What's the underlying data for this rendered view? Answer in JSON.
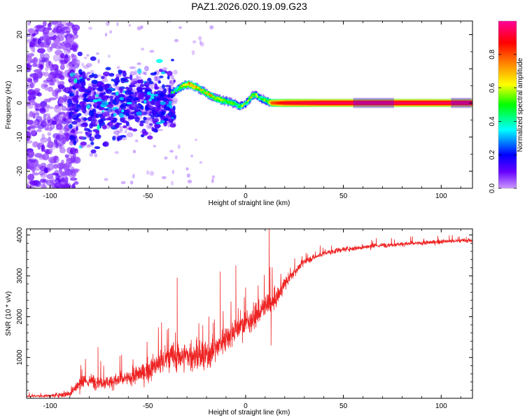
{
  "title": "PAZ1.2026.020.19.09.G23",
  "chart_data": [
    {
      "type": "heatmap",
      "name": "spectrogram",
      "xlabel": "Height of straight line (km)",
      "ylabel": "Frequency (Hz)",
      "xlim": [
        -112,
        116
      ],
      "ylim": [
        -25,
        24
      ],
      "x_ticks": [
        -100,
        -50,
        0,
        50,
        100
      ],
      "y_ticks": [
        -20,
        -10,
        0,
        10,
        20
      ],
      "colorbar": {
        "label": "Normalized spectral amplitude",
        "range": [
          0,
          1
        ],
        "ticks": [
          "0.0",
          "0.2",
          "0.4",
          "0.6",
          "0.8"
        ],
        "tick_values": [
          0,
          0.2,
          0.4,
          0.6,
          0.8
        ],
        "colormap": [
          "#cc99ff",
          "#6600ff",
          "#0000ff",
          "#00ffff",
          "#00ff00",
          "#ffff00",
          "#ff8000",
          "#ff0000",
          "#ff0099"
        ]
      },
      "ridge": {
        "x": [
          -38,
          -35,
          -32,
          -29,
          -27,
          -25,
          -22,
          -19,
          -16,
          -13,
          -10,
          -7,
          -5,
          -3,
          -1,
          1,
          3,
          5,
          7,
          9,
          11,
          13,
          20,
          40,
          60,
          80,
          100,
          116
        ],
        "y": [
          3,
          4,
          5,
          5.5,
          5,
          4.5,
          3.5,
          2.5,
          1.5,
          1,
          0.5,
          0,
          -0.5,
          -1,
          -0.5,
          0.5,
          2,
          2.5,
          1.5,
          1,
          0.5,
          0,
          0,
          0,
          0,
          0,
          0,
          0
        ],
        "amplitude": [
          0.35,
          0.45,
          0.6,
          0.65,
          0.7,
          0.6,
          0.55,
          0.6,
          0.55,
          0.6,
          0.5,
          0.55,
          0.45,
          0.5,
          0.4,
          0.5,
          0.55,
          0.5,
          0.45,
          0.5,
          0.5,
          0.8,
          0.9,
          0.95,
          0.95,
          0.95,
          0.95,
          0.95
        ]
      }
    },
    {
      "type": "line",
      "name": "snr",
      "xlabel": "Height of straight line (km)",
      "ylabel": "SNR (10 * v/v)",
      "xlim": [
        -112,
        116
      ],
      "ylim": [
        0,
        4150
      ],
      "x_ticks": [
        -100,
        -50,
        0,
        50,
        100
      ],
      "y_ticks": [
        1000,
        2000,
        3000,
        4000
      ],
      "series": [
        {
          "name": "SNR",
          "color": "#ee2222",
          "x": [
            -112,
            -100,
            -90,
            -85,
            -80,
            -70,
            -60,
            -50,
            -40,
            -30,
            -20,
            -15,
            -10,
            -5,
            0,
            5,
            10,
            15,
            20,
            25,
            30,
            40,
            50,
            60,
            70,
            80,
            90,
            100,
            116
          ],
          "mean": [
            50,
            60,
            120,
            350,
            420,
            400,
            480,
            680,
            980,
            1050,
            1000,
            1250,
            1500,
            1700,
            1850,
            2000,
            2250,
            2400,
            2800,
            3100,
            3350,
            3550,
            3650,
            3700,
            3750,
            3780,
            3800,
            3840,
            3870
          ],
          "noise": [
            40,
            50,
            150,
            250,
            260,
            250,
            300,
            400,
            600,
            550,
            600,
            450,
            500,
            500,
            450,
            450,
            450,
            350,
            250,
            160,
            120,
            100,
            90,
            90,
            80,
            80,
            80,
            80,
            80
          ]
        }
      ],
      "spikes": [
        {
          "x": -75.5,
          "y": 1250
        },
        {
          "x": -35,
          "y": 2950
        },
        {
          "x": -13,
          "y": 3100
        },
        {
          "x": -5,
          "y": 3250
        },
        {
          "x": 12,
          "y": 4150
        },
        {
          "x": 13,
          "y": 1300
        }
      ]
    }
  ]
}
